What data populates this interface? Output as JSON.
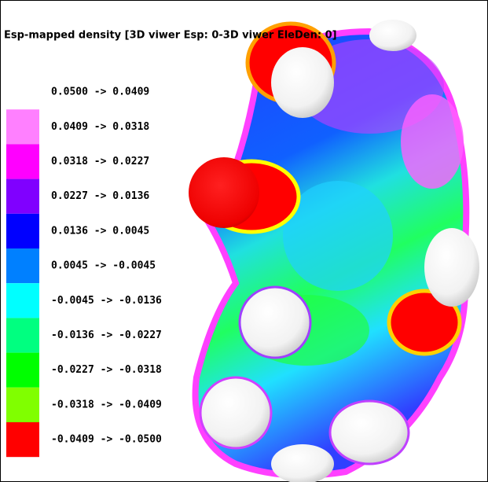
{
  "title": "Esp-mapped density [3D viwer Esp: 0-3D viwer EleDen: 0]",
  "legend": [
    {
      "label": "0.0500 ->  0.0409",
      "color": "#ffffff"
    },
    {
      "label": "0.0409 ->  0.0318",
      "color": "#ff80ff"
    },
    {
      "label": "0.0318 ->  0.0227",
      "color": "#ff00ff"
    },
    {
      "label": "0.0227 ->  0.0136",
      "color": "#8000ff"
    },
    {
      "label": "0.0136 ->  0.0045",
      "color": "#0000ff"
    },
    {
      "label": "0.0045 -> -0.0045",
      "color": "#0080ff"
    },
    {
      "label": "-0.0045 -> -0.0136",
      "color": "#00ffff"
    },
    {
      "label": "-0.0136 -> -0.0227",
      "color": "#00ff80"
    },
    {
      "label": "-0.0227 -> -0.0318",
      "color": "#00ff00"
    },
    {
      "label": "-0.0318 -> -0.0409",
      "color": "#80ff00"
    },
    {
      "label": "-0.0409 -> -0.0500",
      "color": "#ff0000"
    }
  ]
}
